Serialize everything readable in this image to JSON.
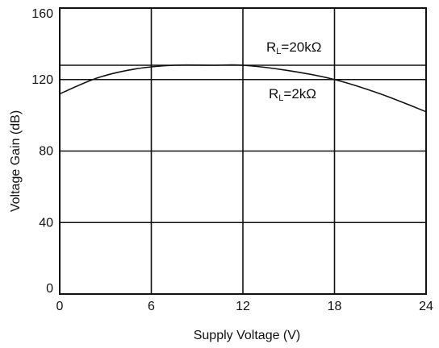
{
  "chart_data": {
    "type": "line",
    "title": "",
    "xlabel": "Supply Voltage (V)",
    "ylabel": "Voltage Gain (dB)",
    "xlim": [
      0,
      24
    ],
    "ylim": [
      0,
      160
    ],
    "xticks": [
      "0",
      "6",
      "12",
      "18",
      "24"
    ],
    "yticks": [
      "0",
      "40",
      "80",
      "120",
      "160"
    ],
    "grid": true,
    "legend": "none",
    "series": [
      {
        "name": "RL=20kΩ",
        "x": [
          0,
          7,
          12,
          24
        ],
        "y": [
          128,
          128,
          128,
          128
        ]
      },
      {
        "name": "RL=2kΩ",
        "x": [
          0,
          2.5,
          5,
          7.5,
          10,
          12,
          15,
          18,
          21,
          24
        ],
        "y": [
          112,
          121,
          126,
          128,
          128,
          128,
          125,
          120,
          112,
          102
        ]
      },
      {
        "name": "",
        "x": [
          0,
          24
        ],
        "y": [
          120,
          120
        ]
      }
    ],
    "annotations": {
      "rl20k": {
        "main": "R",
        "sub": "L",
        "rest": "=20kΩ"
      },
      "rl2k": {
        "main": "R",
        "sub": "L",
        "rest": "=2kΩ"
      }
    }
  }
}
